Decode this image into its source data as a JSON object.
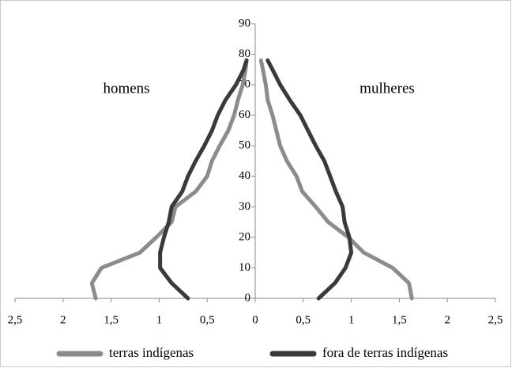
{
  "chart_data": {
    "type": "pyramid-line",
    "annotations": [
      "homens",
      "mulheres"
    ],
    "ages": [
      0,
      5,
      10,
      15,
      20,
      25,
      30,
      35,
      40,
      45,
      50,
      55,
      60,
      65,
      70,
      75,
      78
    ],
    "series": [
      {
        "name": "terras indígenas",
        "color": "#8c8c8c",
        "men": [
          -1.66,
          -1.7,
          -1.6,
          -1.2,
          -1.03,
          -0.87,
          -0.83,
          -0.62,
          -0.5,
          -0.45,
          -0.37,
          -0.28,
          -0.22,
          -0.18,
          -0.13,
          -0.1,
          -0.09
        ],
        "women": [
          1.63,
          1.6,
          1.43,
          1.13,
          0.97,
          0.76,
          0.63,
          0.49,
          0.43,
          0.33,
          0.26,
          0.22,
          0.18,
          0.13,
          0.11,
          0.08,
          0.06
        ]
      },
      {
        "name": "fora de terras indígenas",
        "color": "#3a3a3a",
        "men": [
          -0.7,
          -0.87,
          -0.99,
          -0.99,
          -0.95,
          -0.9,
          -0.87,
          -0.76,
          -0.7,
          -0.62,
          -0.53,
          -0.45,
          -0.39,
          -0.31,
          -0.2,
          -0.12,
          -0.09
        ],
        "women": [
          0.66,
          0.83,
          0.94,
          1.0,
          0.98,
          0.93,
          0.91,
          0.84,
          0.78,
          0.72,
          0.63,
          0.55,
          0.47,
          0.36,
          0.26,
          0.18,
          0.13
        ]
      }
    ],
    "xlim": [
      -2.5,
      2.5
    ],
    "xticks": [
      {
        "value": -2.5,
        "label": "2,5"
      },
      {
        "value": -2,
        "label": "2"
      },
      {
        "value": -1.5,
        "label": "1,5"
      },
      {
        "value": -1,
        "label": "1"
      },
      {
        "value": -0.5,
        "label": "0,5"
      },
      0,
      {
        "value": 0.5,
        "label": "0,5"
      },
      1,
      {
        "value": 1.5,
        "label": "1,5"
      },
      2,
      {
        "value": 2.5,
        "label": "2,5"
      }
    ],
    "ylim": [
      0,
      90
    ],
    "yticks": [
      0,
      10,
      20,
      30,
      40,
      50,
      60,
      70,
      80,
      90
    ]
  }
}
